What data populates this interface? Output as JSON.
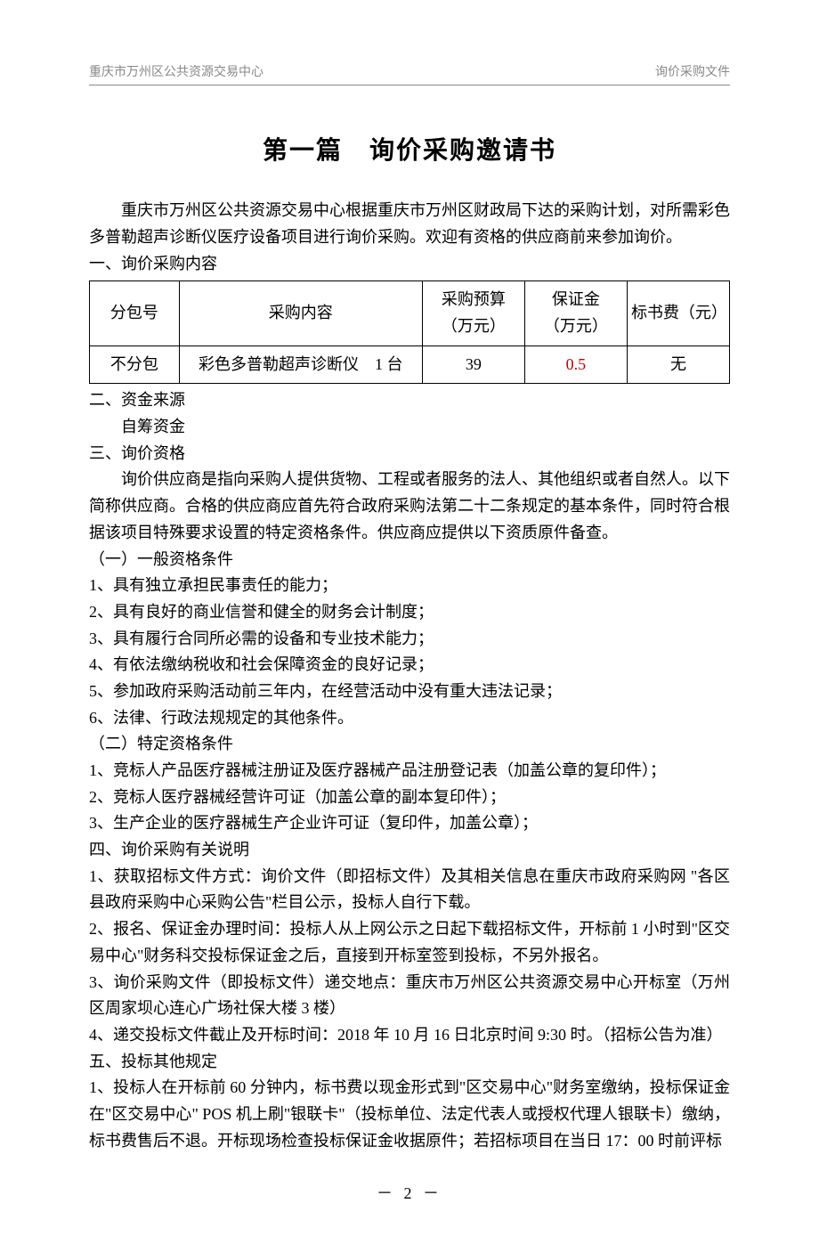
{
  "header": {
    "left": "重庆市万州区公共资源交易中心",
    "right": "询价采购文件"
  },
  "title": "第一篇　询价采购邀请书",
  "intro": "重庆市万州区公共资源交易中心根据重庆市万州区财政局下达的采购计划，对所需彩色多普勒超声诊断仪医疗设备项目进行询价采购。欢迎有资格的供应商前来参加询价。",
  "sec1": {
    "heading": "一、询价采购内容",
    "table": {
      "headers": {
        "pkg": "分包号",
        "content": "采购内容",
        "budget_l1": "采购预算",
        "budget_l2": "（万元）",
        "deposit_l1": "保证金",
        "deposit_l2": "（万元）",
        "fee": "标书费（元）"
      },
      "row": {
        "pkg": "不分包",
        "content": "彩色多普勒超声诊断仪　1 台",
        "budget": "39",
        "deposit": "0.5",
        "fee": "无"
      }
    }
  },
  "sec2": {
    "heading": "二、资金来源",
    "body": "自筹资金"
  },
  "sec3": {
    "heading": "三、询价资格",
    "intro": "询价供应商是指向采购人提供货物、工程或者服务的法人、其他组织或者自然人。以下简称供应商。合格的供应商应首先符合政府采购法第二十二条规定的基本条件，同时符合根据该项目特殊要求设置的特定资格条件。供应商应提供以下资质原件备查。",
    "gen_heading": "（一）一般资格条件",
    "gen_items": [
      "1、具有独立承担民事责任的能力；",
      "2、具有良好的商业信誉和健全的财务会计制度；",
      "3、具有履行合同所必需的设备和专业技术能力；",
      "4、有依法缴纳税收和社会保障资金的良好记录；",
      "5、参加政府采购活动前三年内，在经营活动中没有重大违法记录；",
      "6、法律、行政法规规定的其他条件。"
    ],
    "spec_heading": "（二）特定资格条件",
    "spec_items": [
      "1、竞标人产品医疗器械注册证及医疗器械产品注册登记表（加盖公章的复印件）；",
      "2、竞标人医疗器械经营许可证（加盖公章的副本复印件）；",
      "3、生产企业的医疗器械生产企业许可证（复印件，加盖公章）；"
    ]
  },
  "sec4": {
    "heading": "四、询价采购有关说明",
    "items": [
      "1、获取招标文件方式：询价文件（即招标文件）及其相关信息在重庆市政府采购网 \"各区县政府采购中心采购公告\"栏目公示，投标人自行下载。",
      "2、报名、保证金办理时间：投标人从上网公示之日起下载招标文件，开标前 1 小时到\"区交易中心\"财务科交投标保证金之后，直接到开标室签到投标，不另外报名。",
      "3、询价采购文件（即投标文件）递交地点：重庆市万州区公共资源交易中心开标室（万州区周家坝心连心广场社保大楼 3 楼）",
      "4、递交投标文件截止及开标时间：2018 年 10 月 16 日北京时间 9:30 时。（招标公告为准）"
    ]
  },
  "sec5": {
    "heading": "五、投标其他规定",
    "items": [
      "1、投标人在开标前 60 分钟内，标书费以现金形式到\"区交易中心\"财务室缴纳，投标保证金在\"区交易中心\" POS 机上刷\"银联卡\"（投标单位、法定代表人或授权代理人银联卡）缴纳，标书费售后不退。开标现场检查投标保证金收据原件；若招标项目在当日 17：00 时前评标"
    ]
  },
  "page_number": "－ 2 －"
}
